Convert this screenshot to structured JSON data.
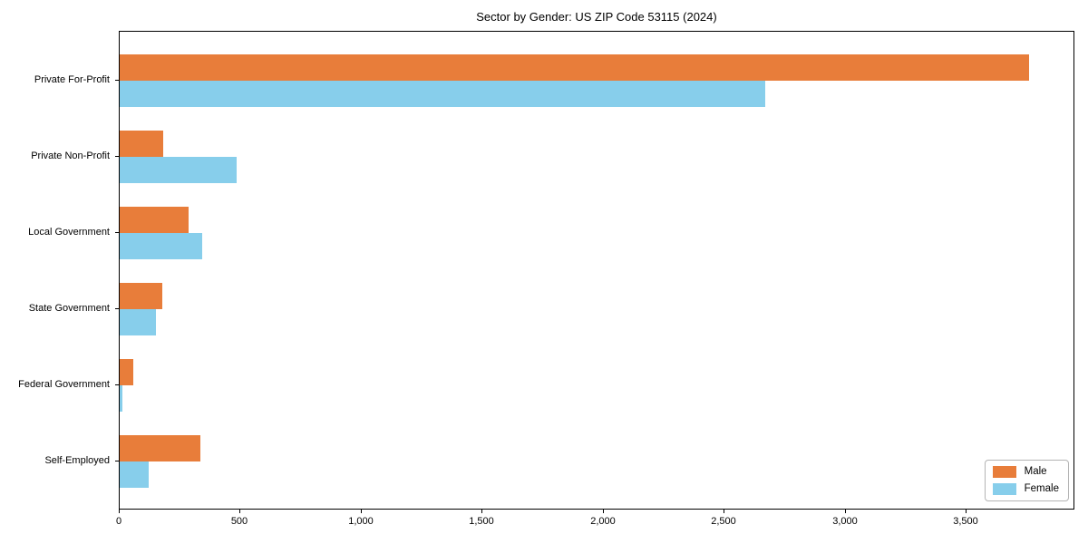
{
  "title": "Sector by Gender: US ZIP Code 53115 (2024)",
  "chart_data": {
    "type": "bar",
    "orientation": "horizontal",
    "title": "Sector by Gender: US ZIP Code 53115 (2024)",
    "categories": [
      "Private For-Profit",
      "Private Non-Profit",
      "Local Government",
      "State Government",
      "Federal Government",
      "Self-Employed"
    ],
    "series": [
      {
        "name": "Male",
        "color": "#E87D3A",
        "values": [
          3760,
          180,
          285,
          175,
          55,
          335
        ]
      },
      {
        "name": "Female",
        "color": "#87CEEB",
        "values": [
          2670,
          485,
          340,
          150,
          11,
          120
        ]
      }
    ],
    "xlabel": "",
    "ylabel": "",
    "xlim": [
      0,
      3950
    ],
    "x_ticks": [
      0,
      500,
      1000,
      1500,
      2000,
      2500,
      3000,
      3500
    ],
    "x_tick_labels": [
      "0",
      "500",
      "1,000",
      "1,500",
      "2,000",
      "2,500",
      "3,000",
      "3,500"
    ],
    "grid": false,
    "legend_position": "lower right"
  },
  "legend": {
    "items": [
      {
        "label": "Male",
        "color": "#E87D3A"
      },
      {
        "label": "Female",
        "color": "#87CEEB"
      }
    ]
  }
}
